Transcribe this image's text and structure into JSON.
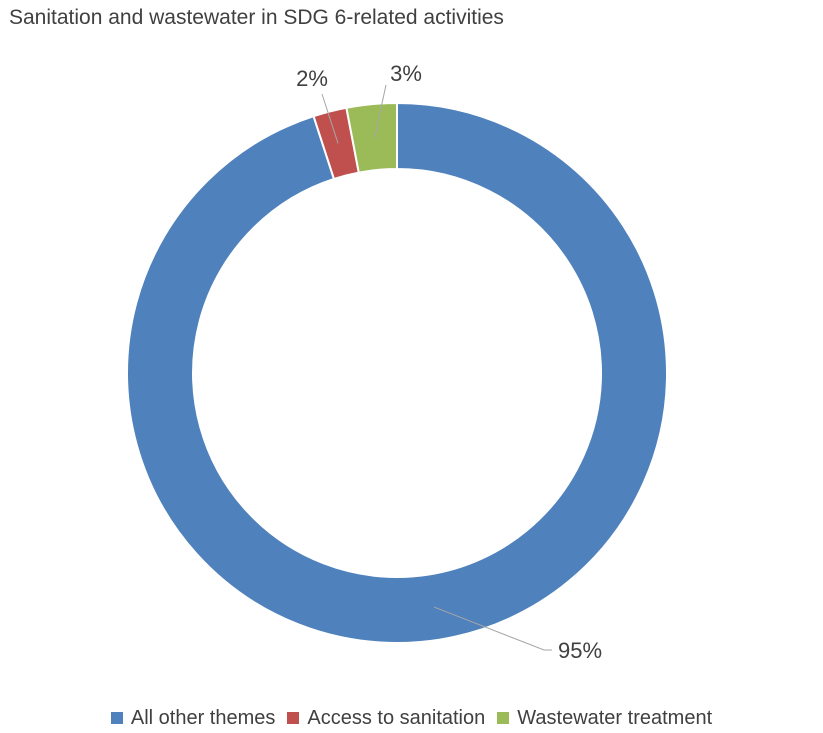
{
  "chart_data": {
    "type": "pie",
    "title": "Sanitation and wastewater in SDG 6-related activities",
    "categories": [
      "All other themes",
      "Access to sanitation",
      "Wastewater treatment"
    ],
    "values": [
      95,
      2,
      3
    ],
    "data_labels": [
      "95%",
      "2%",
      "3%"
    ],
    "colors": [
      "#4f81bd",
      "#c0504d",
      "#9bbb59"
    ],
    "legend_position": "bottom",
    "donut": true
  }
}
